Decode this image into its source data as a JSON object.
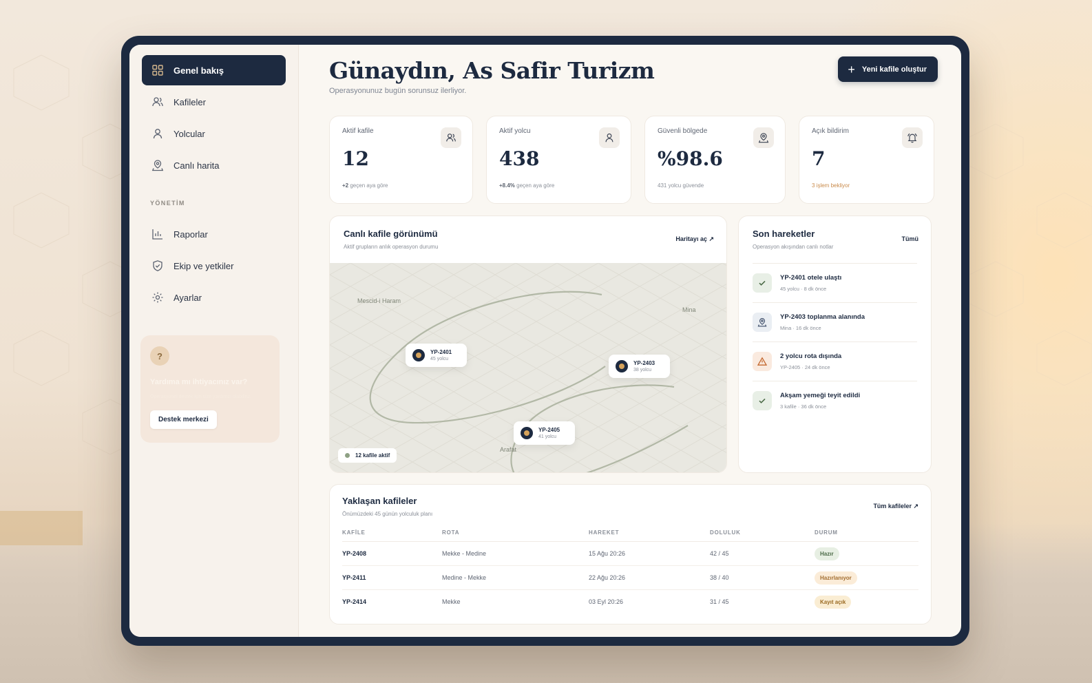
{
  "sidebar": {
    "items": [
      {
        "label": "Genel bakış",
        "icon": "grid-icon",
        "active": true
      },
      {
        "label": "Kafileler",
        "icon": "users-icon"
      },
      {
        "label": "Yolcular",
        "icon": "user-icon"
      },
      {
        "label": "Canlı harita",
        "icon": "map-pin-icon"
      }
    ],
    "section_label": "YÖNETİM",
    "admin_items": [
      {
        "label": "Raporlar",
        "icon": "bar-chart-icon"
      },
      {
        "label": "Ekip ve yetkiler",
        "icon": "shield-icon"
      },
      {
        "label": "Ayarlar",
        "icon": "gear-icon"
      }
    ],
    "help": {
      "title": "Yardıma mı ihtiyacınız var?",
      "text": "Operasyonel destek için size yardımcı olabiliriz.",
      "button": "Destek merkezi"
    }
  },
  "header": {
    "greeting": "Günaydın, As Safir Turizm",
    "subtitle": "Operasyonunuz bugün sorunsuz ilerliyor.",
    "new_button": "Yeni kafile oluştur"
  },
  "stats": [
    {
      "label": "Aktif kafile",
      "value": "12",
      "sub_bold": "+2",
      "sub": " geçen aya göre",
      "icon": "users-icon"
    },
    {
      "label": "Aktif yolcu",
      "value": "438",
      "sub_bold": "+8.4%",
      "sub": " geçen aya göre",
      "icon": "user-icon"
    },
    {
      "label": "Güvenli bölgede",
      "value": "%98.6",
      "sub_bold": "",
      "sub": "431 yolcu güvende",
      "icon": "map-pin-icon"
    },
    {
      "label": "Açık bildirim",
      "value": "7",
      "sub_bold": "",
      "sub": "3 işlem bekliyor",
      "icon": "bell-icon"
    }
  ],
  "map": {
    "title": "Canlı kafile görünümü",
    "subtitle": "Aktif grupların anlık operasyon durumu",
    "link": "Haritayı aç ↗",
    "places": [
      "Mescid-i Haram",
      "Mina",
      "Arafat"
    ],
    "pins": [
      {
        "id": "YP-2401",
        "sub": "45 yolcu"
      },
      {
        "id": "YP-2403",
        "sub": "38 yolcu"
      },
      {
        "id": "YP-2405",
        "sub": "41 yolcu"
      }
    ],
    "legend": "12 kafile aktif"
  },
  "activity": {
    "title": "Son hareketler",
    "subtitle": "Operasyon akışından canlı notlar",
    "link": "Tümü",
    "items": [
      {
        "title": "YP-2401 otele ulaştı",
        "sub": "45 yolcu · 8 dk önce",
        "icon": "check-icon",
        "kind": "ok"
      },
      {
        "title": "YP-2403 toplanma alanında",
        "sub": "Mina · 16 dk önce",
        "icon": "map-pin-icon",
        "kind": "loc"
      },
      {
        "title": "2 yolcu rota dışında",
        "sub": "YP-2405 · 24 dk önce",
        "icon": "warning-icon",
        "kind": "warn"
      },
      {
        "title": "Akşam yemeği teyit edildi",
        "sub": "3 kafile · 36 dk önce",
        "icon": "check-icon",
        "kind": "ok"
      }
    ]
  },
  "upcoming": {
    "title": "Yaklaşan kafileler",
    "subtitle": "Önümüzdeki 45 günün yolculuk planı",
    "link": "Tüm kafileler ↗",
    "columns": [
      "KAFİLE",
      "ROTA",
      "HAREKET",
      "DOLULUK",
      "DURUM"
    ],
    "rows": [
      {
        "id": "YP-2408",
        "route": "Mekke - Medine",
        "departure": "15 Ağu 20:26",
        "occupancy": "42 / 45",
        "status": "Hazır",
        "status_kind": "ready"
      },
      {
        "id": "YP-2411",
        "route": "Medine - Mekke",
        "departure": "22 Ağu 20:26",
        "occupancy": "38 / 40",
        "status": "Hazırlanıyor",
        "status_kind": "prep"
      },
      {
        "id": "YP-2414",
        "route": "Mekke",
        "departure": "03 Eyl 20:26",
        "occupancy": "31 / 45",
        "status": "Kayıt açık",
        "status_kind": "open"
      }
    ]
  },
  "colors": {
    "primary": "#1d2a40",
    "accent": "#d6a35b",
    "background": "#faf7f2"
  }
}
